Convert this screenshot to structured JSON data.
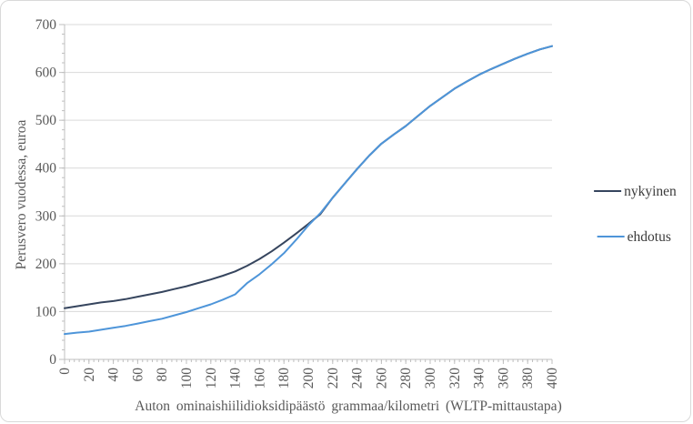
{
  "chart": {
    "legend": {
      "items": [
        {
          "label": "nykyinen",
          "color": "#36455E"
        },
        {
          "label": "ehdotus",
          "color": "#4E95D9"
        }
      ]
    }
  },
  "chart_data": {
    "type": "line",
    "title": "",
    "xlabel": "Auton ominaishiilidioksidipäästö  grammaa/kilometri  (WLTP-mittaustapa)",
    "ylabel": "Perusvero vuodessa, euroa",
    "xlim": [
      0,
      400
    ],
    "ylim": [
      0,
      700
    ],
    "x_ticks": [
      0,
      20,
      40,
      60,
      80,
      100,
      120,
      140,
      160,
      180,
      200,
      220,
      240,
      260,
      280,
      300,
      320,
      340,
      360,
      380,
      400
    ],
    "y_ticks": [
      0,
      100,
      200,
      300,
      400,
      500,
      600,
      700
    ],
    "x_minor_unit": 4,
    "y_minor_unit": 20,
    "grid": "horizontal-major",
    "legend_position": "right",
    "x": [
      0,
      10,
      20,
      30,
      40,
      50,
      60,
      70,
      80,
      90,
      100,
      110,
      120,
      130,
      140,
      150,
      160,
      170,
      180,
      190,
      200,
      210,
      220,
      230,
      240,
      250,
      260,
      270,
      280,
      290,
      300,
      310,
      320,
      330,
      340,
      350,
      360,
      370,
      380,
      390,
      400
    ],
    "series": [
      {
        "name": "nykyinen",
        "color": "#36455E",
        "values": [
          107,
          111,
          115,
          119,
          122,
          126,
          131,
          136,
          141,
          147,
          153,
          160,
          167,
          175,
          184,
          196,
          210,
          226,
          244,
          263,
          283,
          304,
          338,
          368,
          398,
          426,
          451,
          470,
          488,
          509,
          530,
          548,
          566,
          581,
          595,
          607,
          618,
          629,
          639,
          648,
          655
        ]
      },
      {
        "name": "ehdotus",
        "color": "#4E95D9",
        "values": [
          53,
          56,
          58,
          62,
          66,
          70,
          75,
          80,
          85,
          92,
          99,
          107,
          115,
          125,
          136,
          160,
          178,
          199,
          222,
          250,
          280,
          306,
          338,
          368,
          398,
          426,
          451,
          470,
          488,
          509,
          530,
          548,
          566,
          581,
          595,
          607,
          618,
          629,
          639,
          648,
          655
        ]
      }
    ]
  },
  "colors": {
    "background": "#FFFFFF",
    "chart_border": "#D9D9D9",
    "axis_line": "#BFBFBF",
    "tick_mark": "#BFBFBF",
    "gridline": "#D9D9D9",
    "tick_text": "#595959",
    "axis_title_text": "#595959",
    "legend_text": "#3B3B3B"
  }
}
